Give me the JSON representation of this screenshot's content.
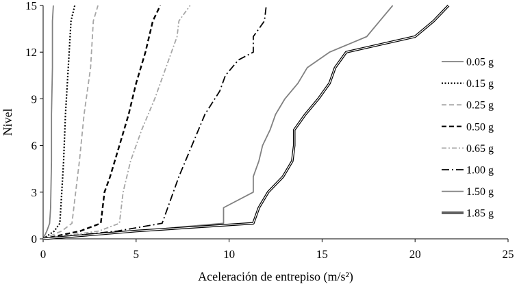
{
  "chart_data": {
    "type": "line",
    "xlabel": "Aceleración de entrepiso (m/s²)",
    "ylabel": "Nivel",
    "xlim": [
      0,
      25
    ],
    "ylim": [
      0,
      15
    ],
    "xticks": [
      0,
      5,
      10,
      15,
      20,
      25
    ],
    "yticks": [
      0,
      3,
      6,
      9,
      12,
      15
    ],
    "grid": false,
    "legend_position": "right",
    "series": [
      {
        "name": "0.05 g",
        "color": "#808080",
        "style": "solid",
        "points": [
          [
            0,
            0
          ],
          [
            0.2,
            0.5
          ],
          [
            0.35,
            1
          ],
          [
            0.4,
            2
          ],
          [
            0.45,
            5
          ],
          [
            0.45,
            8
          ],
          [
            0.5,
            11
          ],
          [
            0.5,
            14
          ],
          [
            0.55,
            15
          ]
        ]
      },
      {
        "name": "0.15 g",
        "color": "#000000",
        "style": "dotted",
        "points": [
          [
            0,
            0
          ],
          [
            0.6,
            0.5
          ],
          [
            0.9,
            1
          ],
          [
            1.0,
            3
          ],
          [
            1.1,
            5
          ],
          [
            1.2,
            8
          ],
          [
            1.35,
            11
          ],
          [
            1.5,
            14
          ],
          [
            1.7,
            15
          ]
        ]
      },
      {
        "name": "0.25 g",
        "color": "#a6a6a6",
        "style": "dashed",
        "points": [
          [
            0,
            0
          ],
          [
            1.0,
            0.5
          ],
          [
            1.55,
            1
          ],
          [
            1.75,
            3
          ],
          [
            1.95,
            5
          ],
          [
            2.2,
            8
          ],
          [
            2.55,
            11
          ],
          [
            2.7,
            14
          ],
          [
            2.95,
            15
          ]
        ]
      },
      {
        "name": "0.50 g",
        "color": "#000000",
        "style": "dashed",
        "points": [
          [
            0,
            0
          ],
          [
            2.0,
            0.5
          ],
          [
            3.1,
            1
          ],
          [
            3.3,
            3
          ],
          [
            3.6,
            4
          ],
          [
            4.1,
            6
          ],
          [
            4.6,
            8
          ],
          [
            5.0,
            10
          ],
          [
            5.5,
            12
          ],
          [
            5.9,
            14
          ],
          [
            6.3,
            15
          ]
        ]
      },
      {
        "name": "0.65 g",
        "color": "#a6a6a6",
        "style": "dashdot",
        "points": [
          [
            0,
            0
          ],
          [
            3.0,
            0.5
          ],
          [
            4.1,
            1
          ],
          [
            4.3,
            3
          ],
          [
            4.7,
            5
          ],
          [
            5.3,
            7
          ],
          [
            6.0,
            9
          ],
          [
            6.6,
            11
          ],
          [
            7.2,
            13
          ],
          [
            7.3,
            14
          ],
          [
            7.9,
            15
          ]
        ]
      },
      {
        "name": "1.00 g",
        "color": "#000000",
        "style": "longdashdot",
        "points": [
          [
            0,
            0
          ],
          [
            4.0,
            0.5
          ],
          [
            6.4,
            1
          ],
          [
            6.7,
            2
          ],
          [
            7.3,
            4
          ],
          [
            8.0,
            6
          ],
          [
            8.7,
            8
          ],
          [
            9.5,
            9.5
          ],
          [
            9.8,
            10.5
          ],
          [
            10.5,
            11.5
          ],
          [
            11.3,
            12
          ],
          [
            11.3,
            13
          ],
          [
            11.9,
            14
          ],
          [
            12.0,
            15
          ]
        ]
      },
      {
        "name": "1.50 g",
        "color": "#808080",
        "style": "solid",
        "points": [
          [
            0,
            0
          ],
          [
            5.0,
            0.5
          ],
          [
            9.7,
            1
          ],
          [
            9.7,
            2
          ],
          [
            11.3,
            3
          ],
          [
            11.3,
            4
          ],
          [
            11.6,
            5
          ],
          [
            11.8,
            6
          ],
          [
            12.2,
            7
          ],
          [
            12.5,
            8
          ],
          [
            13.0,
            9
          ],
          [
            13.7,
            10
          ],
          [
            14.2,
            11
          ],
          [
            15.4,
            12
          ],
          [
            17.4,
            13
          ],
          [
            18.1,
            14
          ],
          [
            18.8,
            15
          ]
        ]
      },
      {
        "name": "1.85 g",
        "color": "#000000",
        "style": "double",
        "points": [
          [
            0,
            0
          ],
          [
            5.0,
            0.5
          ],
          [
            11.3,
            1
          ],
          [
            11.6,
            2
          ],
          [
            12.1,
            3
          ],
          [
            12.9,
            4
          ],
          [
            13.4,
            5
          ],
          [
            13.5,
            6
          ],
          [
            13.5,
            7
          ],
          [
            14.1,
            8
          ],
          [
            14.8,
            9
          ],
          [
            15.4,
            10
          ],
          [
            15.7,
            11
          ],
          [
            16.3,
            12
          ],
          [
            20.0,
            13
          ],
          [
            21.0,
            14
          ],
          [
            21.8,
            15
          ]
        ]
      }
    ]
  }
}
